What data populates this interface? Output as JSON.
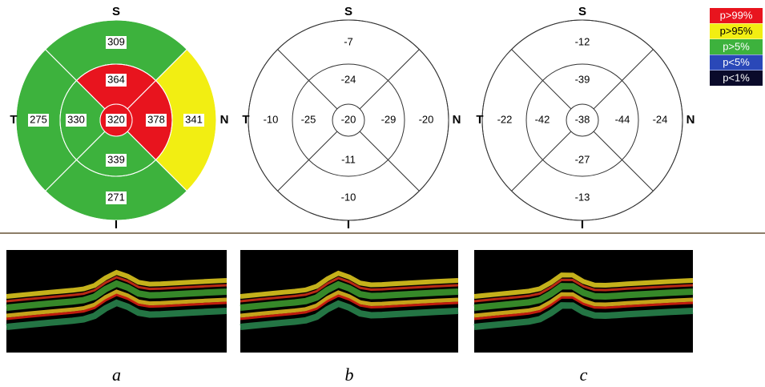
{
  "legend": [
    {
      "label": "p>99%",
      "color": "#e8141e"
    },
    {
      "label": "p>95%",
      "color": "#f2ee12"
    },
    {
      "label": "p>5%",
      "color": "#3db23d"
    },
    {
      "label": "p<5%",
      "color": "#2a48b8"
    },
    {
      "label": "p<1%",
      "color": "#0a0a2a"
    }
  ],
  "grids": [
    {
      "caption": "a",
      "superior": "S",
      "nasal": "N",
      "inferior": "I",
      "temporal": "T",
      "center": {
        "value": 320,
        "color": "#e8141e"
      },
      "inner": [
        {
          "value": 364,
          "color": "#e8141e"
        },
        {
          "value": 378,
          "color": "#e8141e"
        },
        {
          "value": 339,
          "color": "#3db23d"
        },
        {
          "value": 330,
          "color": "#3db23d"
        }
      ],
      "outer": [
        {
          "value": 309,
          "color": "#3db23d"
        },
        {
          "value": 341,
          "color": "#f2ee12"
        },
        {
          "value": 271,
          "color": "#3db23d"
        },
        {
          "value": 275,
          "color": "#3db23d"
        }
      ]
    },
    {
      "caption": "b",
      "superior": "S",
      "nasal": "N",
      "inferior": "I",
      "temporal": "T",
      "center": {
        "value": -20
      },
      "inner": [
        {
          "value": -24
        },
        {
          "value": -29
        },
        {
          "value": -11
        },
        {
          "value": -25
        }
      ],
      "outer": [
        {
          "value": -7
        },
        {
          "value": -20
        },
        {
          "value": -10
        },
        {
          "value": -10
        }
      ]
    },
    {
      "caption": "c",
      "superior": "S",
      "nasal": "N",
      "inferior": "I",
      "temporal": "T",
      "center": {
        "value": -38
      },
      "inner": [
        {
          "value": -39
        },
        {
          "value": -44
        },
        {
          "value": -27
        },
        {
          "value": -42
        }
      ],
      "outer": [
        {
          "value": -12
        },
        {
          "value": -24
        },
        {
          "value": -13
        },
        {
          "value": -22
        }
      ]
    }
  ]
}
